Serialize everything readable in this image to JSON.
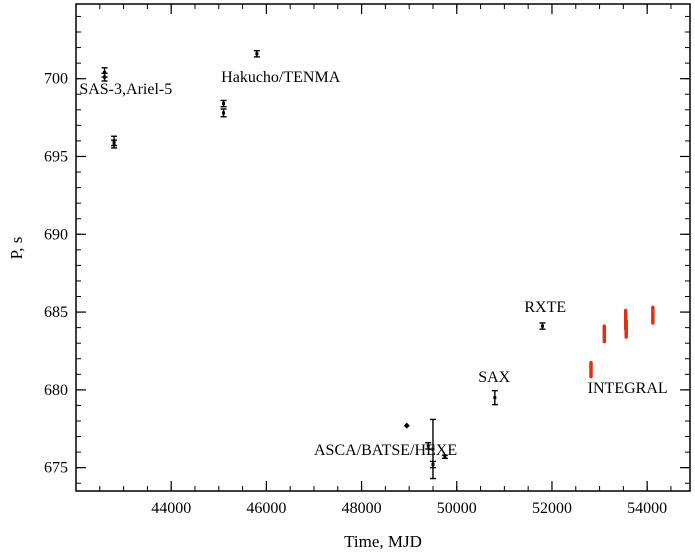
{
  "chart_data": {
    "type": "scatter",
    "title": "",
    "xlabel": "Time, MJD",
    "ylabel": "P, s",
    "xlim": [
      42000,
      54900
    ],
    "ylim": [
      673.5,
      704.8
    ],
    "xticks": [
      44000,
      46000,
      48000,
      50000,
      52000,
      54000
    ],
    "yticks": [
      675,
      680,
      685,
      690,
      695,
      700
    ],
    "x_minor_step": 500,
    "y_minor_step": 1,
    "grid": false,
    "series": [
      {
        "color": "#000000",
        "marker": "errorbar",
        "points": [
          {
            "x": 42600,
            "y": 700.4,
            "err": 0.3
          },
          {
            "x": 42600,
            "y": 700.1,
            "err": 0.25
          },
          {
            "x": 42800,
            "y": 696.0,
            "err": 0.3
          },
          {
            "x": 42800,
            "y": 695.8,
            "err": 0.25
          },
          {
            "x": 45100,
            "y": 698.4,
            "err": 0.2
          },
          {
            "x": 45100,
            "y": 697.8,
            "err": 0.25
          },
          {
            "x": 45800,
            "y": 701.6,
            "err": 0.2
          },
          {
            "x": 49400,
            "y": 676.4,
            "err": 0.2
          },
          {
            "x": 49500,
            "y": 676.2,
            "err": 1.9
          },
          {
            "x": 49500,
            "y": 675.2,
            "err": 0.2
          },
          {
            "x": 49750,
            "y": 675.7,
            "err": 0.1
          },
          {
            "x": 50800,
            "y": 679.5,
            "err": 0.45
          },
          {
            "x": 51800,
            "y": 684.1,
            "err": 0.2
          }
        ]
      },
      {
        "color": "#000000",
        "marker": "diamond",
        "points": [
          {
            "x": 48950,
            "y": 677.7
          }
        ]
      },
      {
        "color": "#e03010",
        "marker": "errorbar",
        "points": [
          {
            "x": 52820,
            "y": 681.3,
            "err": 0.45
          },
          {
            "x": 53100,
            "y": 683.6,
            "err": 0.5
          },
          {
            "x": 53550,
            "y": 684.5,
            "err": 0.6
          },
          {
            "x": 53560,
            "y": 683.9,
            "err": 0.5
          },
          {
            "x": 54120,
            "y": 684.8,
            "err": 0.5
          }
        ]
      }
    ],
    "annotations": [
      {
        "text": "SAS-3,Ariel-5",
        "x": 42070,
        "y": 699.0
      },
      {
        "text": "Hakucho/TENMA",
        "x": 45050,
        "y": 699.8
      },
      {
        "text": "ASCA/BATSE/HEXE",
        "x": 47000,
        "y": 675.8
      },
      {
        "text": "SAX",
        "x": 50450,
        "y": 680.5
      },
      {
        "text": "RXTE",
        "x": 51420,
        "y": 685.0
      },
      {
        "text": "INTEGRAL",
        "x": 52750,
        "y": 679.8
      }
    ]
  }
}
